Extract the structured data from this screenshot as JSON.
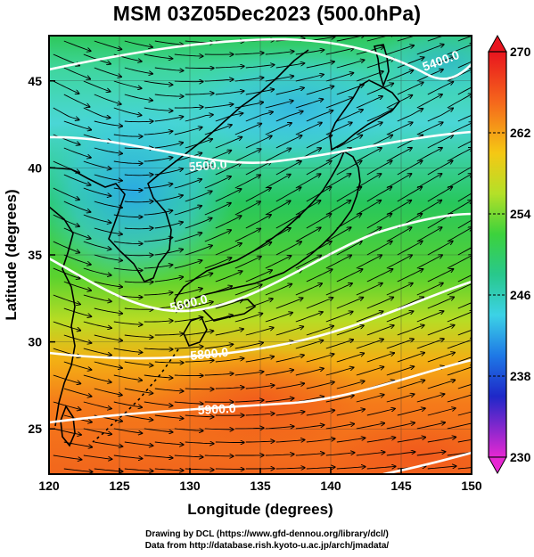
{
  "title": "MSM 03Z05Dec2023 (500.0hPa)",
  "map": {
    "xlabel": "Longitude (degrees)",
    "ylabel": "Latitude  (degrees)",
    "lon_range": [
      120,
      150
    ],
    "lat_range": [
      22.4,
      47.6
    ],
    "lon_ticks": [
      "120",
      "125",
      "130",
      "135",
      "140",
      "145",
      "150"
    ],
    "lat_ticks": [
      "25",
      "30",
      "35",
      "40",
      "45"
    ],
    "contour_labels": [
      "5400.0",
      "5500.0",
      "5600.0",
      "5800.0",
      "5900.0"
    ]
  },
  "colorbar": {
    "ticks": [
      "270",
      "262",
      "254",
      "246",
      "238",
      "230"
    ],
    "range": [
      230,
      270
    ]
  },
  "credits": {
    "line1": "Drawing by DCL (https://www.gfd-dennou.org/library/dcl/)",
    "line2": "Data from http://database.rish.kyoto-u.ac.jp/arch/jmadata/"
  }
}
